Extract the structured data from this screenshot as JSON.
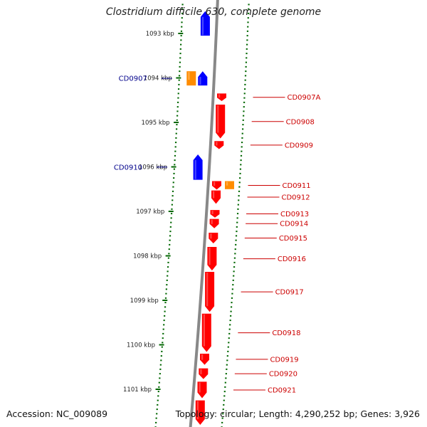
{
  "header": {
    "title": "Clostridium difficile 630, complete genome"
  },
  "footer": {
    "accession": "Accession: NC_009089",
    "topology": "Topology: circular; Length: 4,290,252 bp; Genes: 3,926"
  },
  "genome_map": {
    "start_kbp": 1092.65,
    "end_kbp": 1101.75,
    "tick_unit": "kbp",
    "ticks": [
      {
        "kbp": 1093,
        "label": "1093 kbp"
      },
      {
        "kbp": 1094,
        "label": "1094 kbp"
      },
      {
        "kbp": 1095,
        "label": "1095 kbp"
      },
      {
        "kbp": 1096,
        "label": "1096 kbp"
      },
      {
        "kbp": 1097,
        "label": "1097 kbp"
      },
      {
        "kbp": 1098,
        "label": "1098 kbp"
      },
      {
        "kbp": 1099,
        "label": "1099 kbp"
      },
      {
        "kbp": 1100,
        "label": "1100 kbp"
      },
      {
        "kbp": 1101,
        "label": "1101 kbp"
      }
    ],
    "colors": {
      "forward_cds": "#0000ff",
      "reverse_cds": "#ff0000",
      "other_feature": "#ff8c00",
      "forward_label": "#00008b",
      "reverse_label": "#cc0000",
      "ticks": "#006600",
      "backbone": "#888888"
    },
    "features": [
      {
        "strand": "forward",
        "type": "cds",
        "start_kbp": 1092.5,
        "end_kbp": 1093.05,
        "label": ""
      },
      {
        "strand": "forward",
        "type": "other",
        "start_kbp": 1093.85,
        "end_kbp": 1094.17,
        "label": ""
      },
      {
        "strand": "forward",
        "type": "cds",
        "start_kbp": 1093.85,
        "end_kbp": 1094.17,
        "label": "CD0907"
      },
      {
        "strand": "reverse",
        "type": "cds",
        "start_kbp": 1094.35,
        "end_kbp": 1094.52,
        "label": "CD0907A"
      },
      {
        "strand": "reverse",
        "type": "cds",
        "start_kbp": 1094.6,
        "end_kbp": 1095.36,
        "label": "CD0908"
      },
      {
        "strand": "reverse",
        "type": "cds",
        "start_kbp": 1095.42,
        "end_kbp": 1095.6,
        "label": "CD0909"
      },
      {
        "strand": "forward",
        "type": "cds",
        "start_kbp": 1095.72,
        "end_kbp": 1096.29,
        "label": "CD0910"
      },
      {
        "strand": "reverse",
        "type": "other",
        "start_kbp": 1096.32,
        "end_kbp": 1096.5,
        "label": ""
      },
      {
        "strand": "reverse",
        "type": "cds",
        "start_kbp": 1096.32,
        "end_kbp": 1096.51,
        "label": "CD0911"
      },
      {
        "strand": "reverse",
        "type": "cds",
        "start_kbp": 1096.53,
        "end_kbp": 1096.83,
        "label": "CD0912"
      },
      {
        "strand": "reverse",
        "type": "cds",
        "start_kbp": 1096.97,
        "end_kbp": 1097.14,
        "label": "CD0913"
      },
      {
        "strand": "reverse",
        "type": "cds",
        "start_kbp": 1097.17,
        "end_kbp": 1097.38,
        "label": "CD0914"
      },
      {
        "strand": "reverse",
        "type": "cds",
        "start_kbp": 1097.48,
        "end_kbp": 1097.72,
        "label": "CD0915"
      },
      {
        "strand": "reverse",
        "type": "cds",
        "start_kbp": 1097.8,
        "end_kbp": 1098.33,
        "label": "CD0916"
      },
      {
        "strand": "reverse",
        "type": "cds",
        "start_kbp": 1098.36,
        "end_kbp": 1099.26,
        "label": "CD0917"
      },
      {
        "strand": "reverse",
        "type": "cds",
        "start_kbp": 1099.3,
        "end_kbp": 1100.16,
        "label": "CD0918"
      },
      {
        "strand": "reverse",
        "type": "cds",
        "start_kbp": 1100.2,
        "end_kbp": 1100.45,
        "label": "CD0919"
      },
      {
        "strand": "reverse",
        "type": "cds",
        "start_kbp": 1100.53,
        "end_kbp": 1100.77,
        "label": "CD0920"
      },
      {
        "strand": "reverse",
        "type": "cds",
        "start_kbp": 1100.83,
        "end_kbp": 1101.2,
        "label": "CD0921"
      },
      {
        "strand": "reverse",
        "type": "cds",
        "start_kbp": 1101.25,
        "end_kbp": 1101.8,
        "label": ""
      }
    ]
  }
}
